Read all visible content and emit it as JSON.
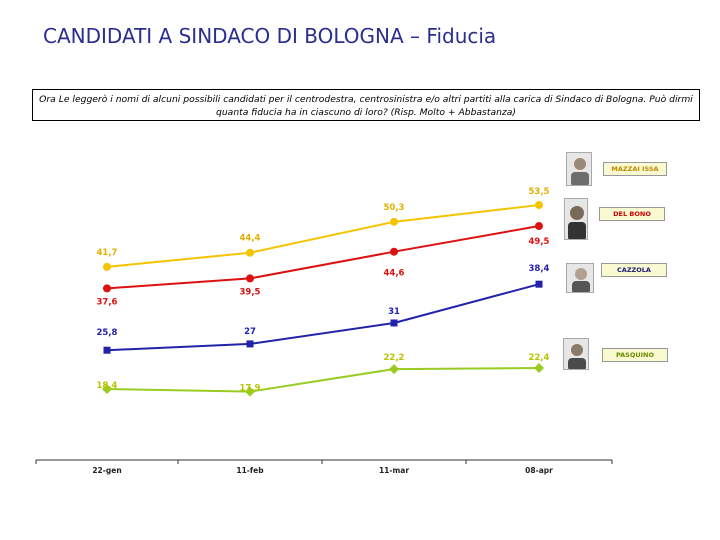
{
  "page": {
    "title_main": "CANDIDATI A SINDACO DI BOLOGNA",
    "title_dash": " – ",
    "title_sub": "Fiducia",
    "question": "Ora Le leggerò i nomi di alcuni possibili candidati per il centrodestra, centrosinistra e/o altri partiti alla carica di Sindaco di Bologna. Può dirmi quanta fiducia ha in ciascuno di loro? (Risp. Molto + Abbastanza)"
  },
  "chart_data": {
    "type": "line",
    "title": "",
    "xlabel": "",
    "ylabel": "",
    "categories": [
      "22-gen",
      "11-feb",
      "11-mar",
      "08-apr"
    ],
    "ylim": [
      10,
      60
    ],
    "grid": false,
    "legend_placement": "right",
    "series": [
      {
        "name": "MAZZAI ISSA",
        "color": "#f5c400",
        "marker": "circle",
        "values": [
          41.7,
          44.4,
          50.3,
          53.5
        ],
        "labels": [
          "41,7",
          "44,4",
          "50,3",
          "53,5"
        ]
      },
      {
        "name": "DEL BONO",
        "color": "#dd1111",
        "marker": "circle",
        "values": [
          37.6,
          39.5,
          44.6,
          49.5
        ],
        "labels": [
          "37,6",
          "39,5",
          "44,6",
          "49,5"
        ]
      },
      {
        "name": "CAZZOLA",
        "color": "#2222aa",
        "marker": "square",
        "values": [
          25.8,
          27,
          31,
          38.4
        ],
        "labels": [
          "25,8",
          "27",
          "31",
          "38,4"
        ]
      },
      {
        "name": "PASQUINO",
        "color": "#99cc22",
        "marker": "diamond",
        "values": [
          18.4,
          17.9,
          22.2,
          22.4
        ],
        "labels": [
          "18,4",
          "17,9",
          "22,2",
          "22,4"
        ]
      }
    ]
  }
}
